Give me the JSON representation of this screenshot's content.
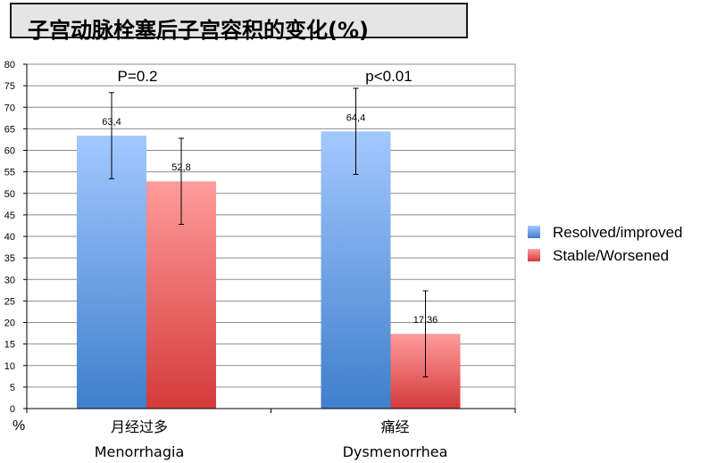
{
  "title": "子宫动脉栓塞后子宫容积的变化(%)",
  "chart_data": {
    "type": "bar",
    "categories": [
      {
        "zh": "月经过多",
        "en": "Menorrhagia"
      },
      {
        "zh": "痛经",
        "en": "Dysmenorrhea"
      }
    ],
    "series": [
      {
        "name": "Resolved/improved",
        "values": [
          63.4,
          64.4
        ],
        "labels": [
          "63,4",
          "64,4"
        ],
        "err_low": [
          53.4,
          54.4
        ],
        "err_high": [
          73.4,
          74.4
        ],
        "color": "#4a86cc"
      },
      {
        "name": "Stable/Worsened",
        "values": [
          52.8,
          17.36
        ],
        "labels": [
          "52,8",
          "17,36"
        ],
        "err_low": [
          42.8,
          7.36
        ],
        "err_high": [
          62.8,
          27.36
        ],
        "color": "#d94444"
      }
    ],
    "annotations": [
      "P=0.2",
      "p<0.01"
    ],
    "ylabel": "%",
    "ylim": [
      0,
      80
    ],
    "yticks": [
      0,
      5,
      10,
      15,
      20,
      25,
      30,
      35,
      40,
      45,
      50,
      55,
      60,
      65,
      70,
      75,
      80
    ],
    "grid": true,
    "legend_position": "right"
  }
}
